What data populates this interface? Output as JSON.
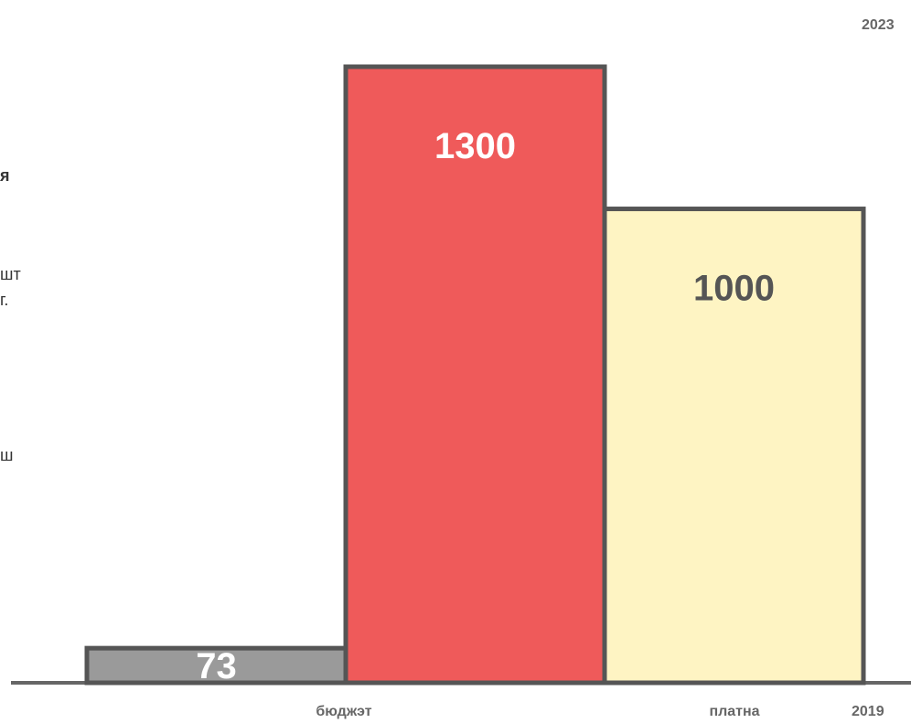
{
  "left_text_fragments": [
    {
      "text": "я",
      "bold": true
    },
    {
      "text": "шт",
      "bold": false
    },
    {
      "text": "г.",
      "bold": false
    },
    {
      "text": "ш",
      "bold": false
    }
  ],
  "chart_data": {
    "type": "bar",
    "categories": [
      "",
      "бюджэт",
      "платна"
    ],
    "values": [
      73,
      1300,
      1000
    ],
    "colors": [
      "#9a9a9a",
      "#ef5a5a",
      "#fef4c3"
    ],
    "value_label_colors": [
      "#ffffff",
      "#ffffff",
      "#555555"
    ],
    "outline_color": "#555555",
    "axis_color": "#666666",
    "title": "",
    "xlabel": "",
    "ylabel": "",
    "ylim": [
      0,
      1300
    ],
    "grid": false,
    "axis_labels_x": {
      "left": "бюджэт",
      "right": "платна"
    },
    "year_labels": {
      "top": "2023",
      "bottom": "2019"
    }
  }
}
